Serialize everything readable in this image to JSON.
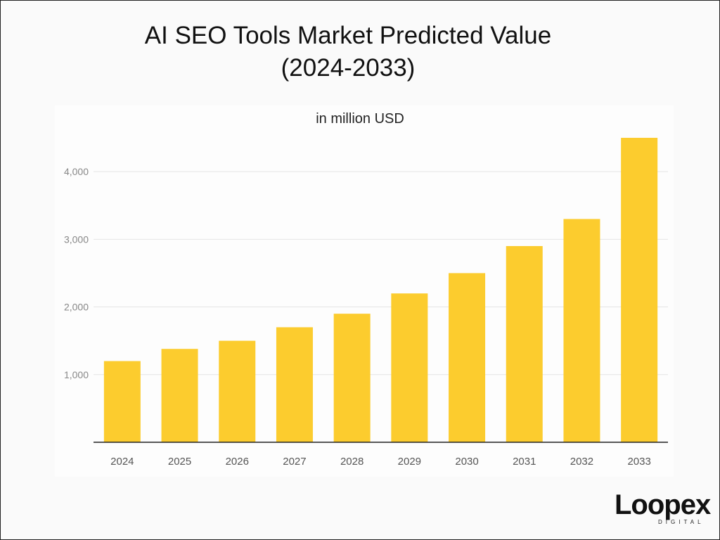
{
  "chart_data": {
    "type": "bar",
    "title_lines": [
      "AI SEO Tools Market Predicted Value",
      "(2024-2033)"
    ],
    "subtitle": "in million USD",
    "categories": [
      "2024",
      "2025",
      "2026",
      "2027",
      "2028",
      "2029",
      "2030",
      "2031",
      "2032",
      "2033"
    ],
    "values": [
      1200,
      1380,
      1500,
      1700,
      1900,
      2200,
      2500,
      2900,
      3300,
      4500
    ],
    "yticks": [
      1000,
      2000,
      3000,
      4000
    ],
    "ytick_labels": [
      "1,000",
      "2,000",
      "3,000",
      "4,000"
    ],
    "ylim": [
      0,
      4500
    ],
    "xlabel": "",
    "ylabel": "",
    "grid": true,
    "bar_color": "#fccc2e",
    "grid_color": "#e4e4e4",
    "axis_color": "#222222",
    "tick_label_color": "#888888"
  },
  "branding": {
    "logo_text": "Loopex",
    "logo_subtext": "DIGITAL"
  }
}
